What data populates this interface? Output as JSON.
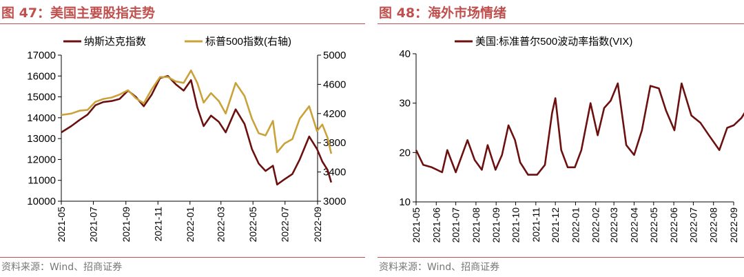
{
  "left_panel": {
    "title": "图 47：美国主要股指走势",
    "source": "资料来源：Wind、招商证券"
  },
  "right_panel": {
    "title": "图 48：海外市场情绪",
    "source": "资料来源：Wind、招商证券"
  },
  "colors": {
    "accent": "#c0504d",
    "nasdaq": "#6b0f0f",
    "sp500": "#c9a23a",
    "vix": "#6b0f0f"
  },
  "chart_data": [
    {
      "type": "line",
      "title": "",
      "xlabel": "",
      "ylabel": "",
      "x_ticks": [
        "2021-05",
        "2021-07",
        "2021-09",
        "2021-11",
        "2022-01",
        "2022-03",
        "2022-05",
        "2022-07",
        "2022-09"
      ],
      "y_ticks": [
        "10000",
        "11000",
        "12000",
        "13000",
        "14000",
        "15000",
        "16000",
        "17000"
      ],
      "y2_ticks": [
        "3000",
        "3400",
        "3800",
        "4200",
        "4600",
        "5000"
      ],
      "ylim": [
        10000,
        17000
      ],
      "y2lim": [
        3000,
        5000
      ],
      "legend": "top",
      "grid": false,
      "series": [
        {
          "name": "纳斯达克指数",
          "axis": "left",
          "x": [
            "2021-05-01",
            "2021-05-20",
            "2021-06-05",
            "2021-06-20",
            "2021-07-05",
            "2021-07-20",
            "2021-08-05",
            "2021-08-20",
            "2021-09-05",
            "2021-09-20",
            "2021-10-05",
            "2021-10-20",
            "2021-11-05",
            "2021-11-20",
            "2021-12-05",
            "2021-12-20",
            "2022-01-03",
            "2022-01-15",
            "2022-01-27",
            "2022-02-10",
            "2022-02-25",
            "2022-03-10",
            "2022-03-29",
            "2022-04-15",
            "2022-04-29",
            "2022-05-12",
            "2022-05-25",
            "2022-06-08",
            "2022-06-16",
            "2022-06-30",
            "2022-07-15",
            "2022-07-29",
            "2022-08-16",
            "2022-08-31",
            "2022-09-10",
            "2022-09-20",
            "2022-09-27"
          ],
          "values": [
            13300,
            13600,
            13900,
            14150,
            14600,
            14750,
            14800,
            14900,
            15300,
            15000,
            14550,
            15100,
            15900,
            16000,
            15600,
            15300,
            15800,
            14500,
            13600,
            14100,
            13800,
            13300,
            14400,
            13700,
            12500,
            11800,
            11450,
            11700,
            10800,
            11050,
            11300,
            12000,
            13100,
            12500,
            11900,
            11500,
            10900
          ]
        },
        {
          "name": "标普500指数(右轴)",
          "axis": "right",
          "x": [
            "2021-05-01",
            "2021-05-20",
            "2021-06-05",
            "2021-06-20",
            "2021-07-05",
            "2021-07-20",
            "2021-08-05",
            "2021-08-20",
            "2021-09-05",
            "2021-09-20",
            "2021-10-05",
            "2021-10-20",
            "2021-11-05",
            "2021-11-20",
            "2021-12-05",
            "2021-12-20",
            "2022-01-03",
            "2022-01-15",
            "2022-01-27",
            "2022-02-10",
            "2022-02-25",
            "2022-03-10",
            "2022-03-29",
            "2022-04-15",
            "2022-04-29",
            "2022-05-12",
            "2022-05-25",
            "2022-06-08",
            "2022-06-16",
            "2022-06-30",
            "2022-07-15",
            "2022-07-29",
            "2022-08-16",
            "2022-08-31",
            "2022-09-10",
            "2022-09-20",
            "2022-09-27"
          ],
          "values": [
            4180,
            4200,
            4240,
            4250,
            4360,
            4400,
            4420,
            4460,
            4520,
            4410,
            4340,
            4530,
            4700,
            4700,
            4640,
            4620,
            4790,
            4620,
            4350,
            4480,
            4370,
            4200,
            4620,
            4440,
            4130,
            3930,
            3900,
            4100,
            3670,
            3790,
            3850,
            4130,
            4300,
            3960,
            4050,
            3870,
            3650
          ]
        }
      ]
    },
    {
      "type": "line",
      "title": "",
      "xlabel": "",
      "ylabel": "",
      "x_ticks": [
        "2021-05",
        "2021-06",
        "2021-07",
        "2021-08",
        "2021-09",
        "2021-10",
        "2021-11",
        "2021-12",
        "2022-01",
        "2022-02",
        "2022-03",
        "2022-04",
        "2022-05",
        "2022-06",
        "2022-07",
        "2022-08",
        "2022-09"
      ],
      "y_ticks": [
        "10",
        "20",
        "30",
        "40"
      ],
      "ylim": [
        10,
        40
      ],
      "legend": "top",
      "grid": false,
      "series": [
        {
          "name": "美国:标准普尔500波动率指数(VIX)",
          "x": [
            "2021-05-01",
            "2021-05-12",
            "2021-05-25",
            "2021-06-10",
            "2021-06-18",
            "2021-07-01",
            "2021-07-19",
            "2021-07-30",
            "2021-08-10",
            "2021-08-19",
            "2021-08-31",
            "2021-09-10",
            "2021-09-20",
            "2021-09-30",
            "2021-10-08",
            "2021-10-20",
            "2021-11-03",
            "2021-11-15",
            "2021-11-26",
            "2021-12-01",
            "2021-12-10",
            "2021-12-20",
            "2021-12-31",
            "2022-01-10",
            "2022-01-24",
            "2022-02-04",
            "2022-02-14",
            "2022-02-24",
            "2022-03-07",
            "2022-03-20",
            "2022-04-01",
            "2022-04-13",
            "2022-04-26",
            "2022-05-09",
            "2022-05-20",
            "2022-06-02",
            "2022-06-13",
            "2022-06-28",
            "2022-07-12",
            "2022-07-25",
            "2022-08-10",
            "2022-08-22",
            "2022-09-01",
            "2022-09-13",
            "2022-09-27"
          ],
          "values": [
            20.5,
            17.5,
            17.0,
            16.0,
            20.5,
            16.0,
            22.5,
            18.5,
            16.5,
            21.5,
            16.5,
            19.5,
            25.5,
            22.5,
            18.0,
            15.5,
            15.5,
            17.5,
            28.0,
            31.0,
            20.5,
            17.0,
            17.0,
            20.5,
            30.0,
            23.5,
            29.0,
            30.5,
            34.0,
            21.5,
            19.5,
            24.5,
            33.5,
            33.0,
            28.5,
            24.5,
            34.0,
            27.5,
            26.0,
            23.5,
            20.5,
            25.0,
            25.5,
            27.0,
            30.0
          ]
        }
      ]
    }
  ]
}
